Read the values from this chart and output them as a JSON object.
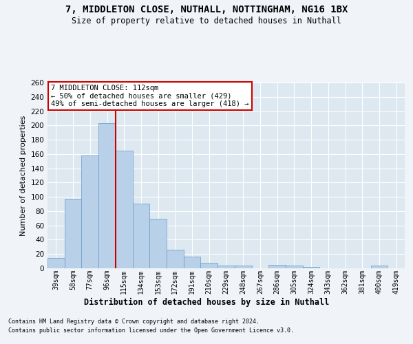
{
  "title1": "7, MIDDLETON CLOSE, NUTHALL, NOTTINGHAM, NG16 1BX",
  "title2": "Size of property relative to detached houses in Nuthall",
  "xlabel": "Distribution of detached houses by size in Nuthall",
  "ylabel": "Number of detached properties",
  "categories": [
    "39sqm",
    "58sqm",
    "77sqm",
    "96sqm",
    "115sqm",
    "134sqm",
    "153sqm",
    "172sqm",
    "191sqm",
    "210sqm",
    "229sqm",
    "248sqm",
    "267sqm",
    "286sqm",
    "305sqm",
    "324sqm",
    "343sqm",
    "362sqm",
    "381sqm",
    "400sqm",
    "419sqm"
  ],
  "values": [
    14,
    97,
    158,
    203,
    165,
    91,
    69,
    26,
    16,
    8,
    4,
    4,
    0,
    5,
    4,
    2,
    0,
    0,
    0,
    4,
    0
  ],
  "bar_color": "#b8d0e8",
  "bar_edge_color": "#6699cc",
  "bar_linewidth": 0.5,
  "vline_index": 3.5,
  "vline_color": "#cc0000",
  "annotation_line1": "7 MIDDLETON CLOSE: 112sqm",
  "annotation_line2": "← 50% of detached houses are smaller (429)",
  "annotation_line3": "49% of semi-detached houses are larger (418) →",
  "annotation_box_facecolor": "#ffffff",
  "annotation_box_edgecolor": "#cc0000",
  "ylim_max": 260,
  "yticks": [
    0,
    20,
    40,
    60,
    80,
    100,
    120,
    140,
    160,
    180,
    200,
    220,
    240,
    260
  ],
  "fig_facecolor": "#f0f4f8",
  "ax_facecolor": "#dde8f0",
  "grid_color": "#ffffff",
  "footnote1": "Contains HM Land Registry data © Crown copyright and database right 2024.",
  "footnote2": "Contains public sector information licensed under the Open Government Licence v3.0."
}
